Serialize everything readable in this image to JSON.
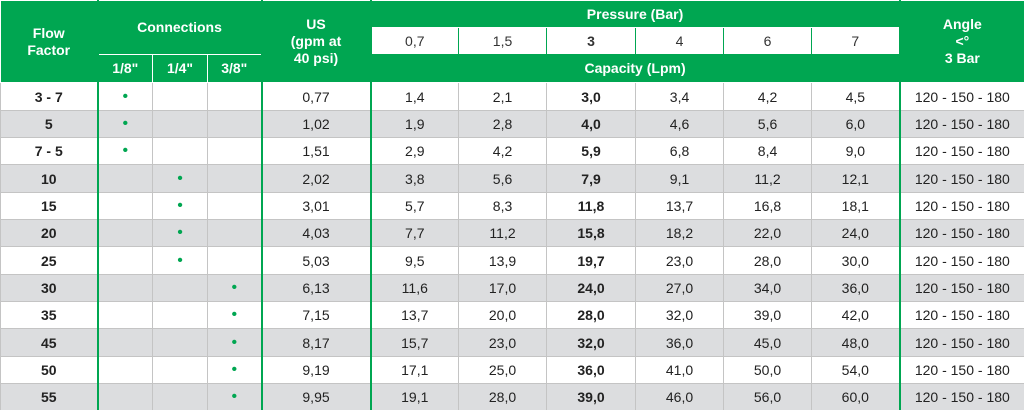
{
  "header": {
    "flow_factor": [
      "Flow",
      "Factor"
    ],
    "connections": "Connections",
    "connection_sizes": [
      "1/8\"",
      "1/4\"",
      "3/8\""
    ],
    "us": [
      "US",
      "(gpm at",
      "40 psi)"
    ],
    "pressure": "Pressure (Bar)",
    "pressures": [
      "0,7",
      "1,5",
      "3",
      "4",
      "6",
      "7"
    ],
    "capacity": "Capacity (Lpm)",
    "angle": [
      "Angle",
      "<°",
      "3 Bar"
    ]
  },
  "table": {
    "rows": [
      [
        "3 - 7",
        "•",
        null,
        null,
        "0,77",
        "1,4",
        "2,1",
        "3,0",
        "3,4",
        "4,2",
        "4,5",
        "120 - 150 - 180"
      ],
      [
        "5",
        "•",
        null,
        null,
        "1,02",
        "1,9",
        "2,8",
        "4,0",
        "4,6",
        "5,6",
        "6,0",
        "120 - 150 - 180"
      ],
      [
        "7 - 5",
        "•",
        null,
        null,
        "1,51",
        "2,9",
        "4,2",
        "5,9",
        "6,8",
        "8,4",
        "9,0",
        "120 - 150 - 180"
      ],
      [
        "10",
        null,
        "•",
        null,
        "2,02",
        "3,8",
        "5,6",
        "7,9",
        "9,1",
        "11,2",
        "12,1",
        "120 - 150 - 180"
      ],
      [
        "15",
        null,
        "•",
        null,
        "3,01",
        "5,7",
        "8,3",
        "11,8",
        "13,7",
        "16,8",
        "18,1",
        "120 - 150 - 180"
      ],
      [
        "20",
        null,
        "•",
        null,
        "4,03",
        "7,7",
        "11,2",
        "15,8",
        "18,2",
        "22,0",
        "24,0",
        "120 - 150 - 180"
      ],
      [
        "25",
        null,
        "•",
        null,
        "5,03",
        "9,5",
        "13,9",
        "19,7",
        "23,0",
        "28,0",
        "30,0",
        "120 - 150 - 180"
      ],
      [
        "30",
        null,
        null,
        "•",
        "6,13",
        "11,6",
        "17,0",
        "24,0",
        "27,0",
        "34,0",
        "36,0",
        "120 - 150 - 180"
      ],
      [
        "35",
        null,
        null,
        "•",
        "7,15",
        "13,7",
        "20,0",
        "28,0",
        "32,0",
        "39,0",
        "42,0",
        "120 - 150 - 180"
      ],
      [
        "45",
        null,
        null,
        "•",
        "8,17",
        "15,7",
        "23,0",
        "32,0",
        "36,0",
        "45,0",
        "48,0",
        "120 - 150 - 180"
      ],
      [
        "50",
        null,
        null,
        "•",
        "9,19",
        "17,1",
        "25,0",
        "36,0",
        "41,0",
        "50,0",
        "54,0",
        "120 - 150 - 180"
      ],
      [
        "55",
        null,
        null,
        "•",
        "9,95",
        "19,1",
        "28,0",
        "39,0",
        "46,0",
        "56,0",
        "60,0",
        "120 - 150 - 180"
      ]
    ]
  }
}
